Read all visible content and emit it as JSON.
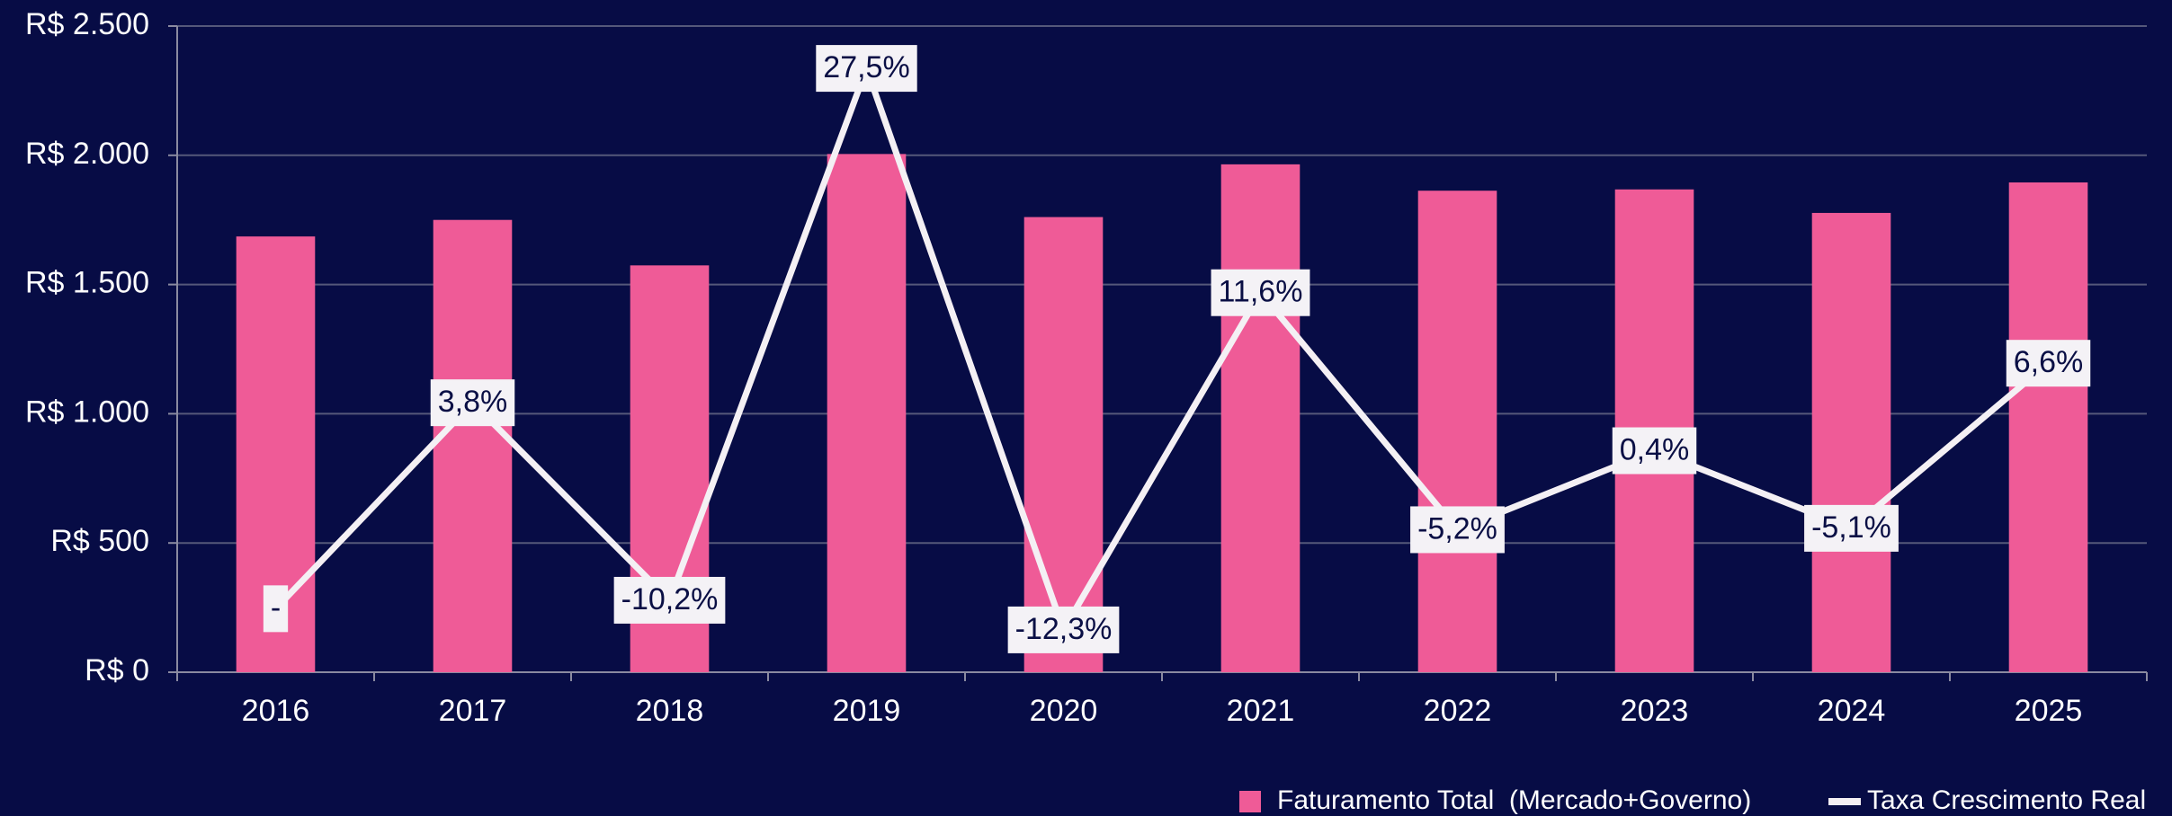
{
  "chart_data": {
    "type": "bar_line",
    "categories": [
      "2016",
      "2017",
      "2018",
      "2019",
      "2020",
      "2021",
      "2022",
      "2023",
      "2024",
      "2025"
    ],
    "series": [
      {
        "name": "Faturamento Total  (Mercado+Governo)",
        "type": "bar",
        "color": "#ef5b97",
        "values": [
          1686,
          1750,
          1574,
          2005,
          1761,
          1965,
          1863,
          1868,
          1777,
          1895
        ]
      },
      {
        "name": "Taxa Crescimento Real",
        "type": "line",
        "axis": "y2",
        "color": "#f4f0f4",
        "values": [
          -10.8,
          3.8,
          -10.2,
          27.5,
          -12.3,
          11.6,
          -5.2,
          0.4,
          -5.1,
          6.6
        ],
        "value_labels": [
          "-",
          "3,8%",
          "-10,2%",
          "27,5%",
          "-12,3%",
          "11,6%",
          "-5,2%",
          "0,4%",
          "-5,1%",
          "6,6%"
        ]
      }
    ],
    "ylim": [
      0,
      2500
    ],
    "yticks": [
      {
        "value": 0,
        "label": "R$ 0"
      },
      {
        "value": 500,
        "label": "R$ 500"
      },
      {
        "value": 1000,
        "label": "R$ 1.000"
      },
      {
        "value": 1500,
        "label": "R$ 1.500"
      },
      {
        "value": 2000,
        "label": "R$ 2.000"
      },
      {
        "value": 2500,
        "label": "R$ 2.500"
      }
    ],
    "y2lim": [
      -15.3,
      30.5
    ],
    "grid": true,
    "legend": "bottom-right"
  }
}
